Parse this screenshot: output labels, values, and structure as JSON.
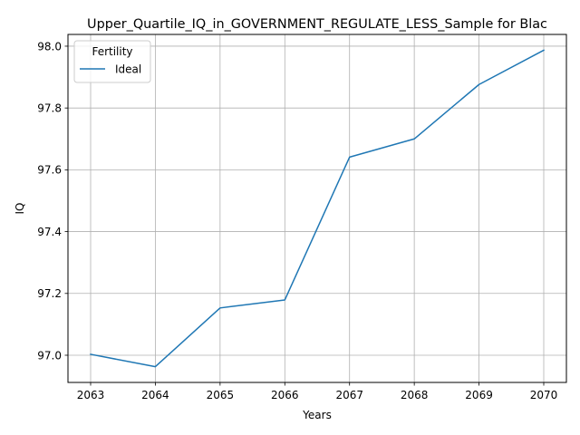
{
  "chart_data": {
    "type": "line",
    "title": "Upper_Quartile_IQ_in_GOVERNMENT_REGULATE_LESS_Sample for Blac",
    "xlabel": "Years",
    "ylabel": "IQ",
    "x": [
      2063,
      2064,
      2065,
      2066,
      2067,
      2068,
      2069,
      2070
    ],
    "xlim": [
      2062.65,
      2070.35
    ],
    "ylim": [
      96.912,
      98.038
    ],
    "xticks": [
      2063,
      2064,
      2065,
      2066,
      2067,
      2068,
      2069,
      2070
    ],
    "yticks": [
      97.0,
      97.2,
      97.4,
      97.6,
      97.8,
      98.0
    ],
    "ytick_labels": [
      "97.0",
      "97.2",
      "97.4",
      "97.6",
      "97.8",
      "98.0"
    ],
    "grid": true,
    "legend": {
      "title": "Fertility",
      "placement": "top-left"
    },
    "series": [
      {
        "name": "Ideal",
        "color": "#1f77b4",
        "values": [
          97.003,
          96.963,
          97.153,
          97.179,
          97.641,
          97.7,
          97.876,
          97.987
        ]
      }
    ]
  }
}
